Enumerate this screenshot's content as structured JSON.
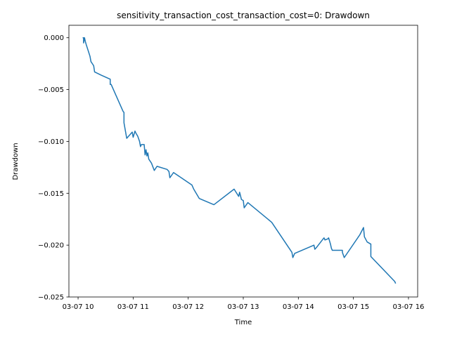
{
  "chart_data": {
    "type": "line",
    "title": "sensitivity_transaction_cost_transaction_cost=0: Drawdown",
    "xlabel": "Time",
    "ylabel": "Drawdown",
    "x_axis_kind": "time",
    "xlim": [
      "03-07 09:50",
      "03-07 16:10"
    ],
    "ylim": [
      -0.025,
      0.0012
    ],
    "xticks": [
      {
        "value": "03-07 10:00",
        "label": "03-07 10"
      },
      {
        "value": "03-07 11:00",
        "label": "03-07 11"
      },
      {
        "value": "03-07 12:00",
        "label": "03-07 12"
      },
      {
        "value": "03-07 13:00",
        "label": "03-07 13"
      },
      {
        "value": "03-07 14:00",
        "label": "03-07 14"
      },
      {
        "value": "03-07 15:00",
        "label": "03-07 15"
      },
      {
        "value": "03-07 16:00",
        "label": "03-07 16"
      }
    ],
    "yticks": [
      {
        "value": 0.0,
        "label": "0.000"
      },
      {
        "value": -0.005,
        "label": "−0.005"
      },
      {
        "value": -0.01,
        "label": "−0.010"
      },
      {
        "value": -0.015,
        "label": "−0.015"
      },
      {
        "value": -0.02,
        "label": "−0.020"
      },
      {
        "value": -0.025,
        "label": "−0.025"
      }
    ],
    "grid": false,
    "legend": "none",
    "series": [
      {
        "color": "#1f77b4",
        "points": [
          [
            "03-07 10:05",
            0.0
          ],
          [
            "03-07 10:06",
            0.0
          ],
          [
            "03-07 10:06",
            -0.0005
          ],
          [
            "03-07 10:07",
            0.0
          ],
          [
            "03-07 10:08",
            -0.0004
          ],
          [
            "03-07 10:09",
            -0.0007
          ],
          [
            "03-07 10:13",
            -0.0018
          ],
          [
            "03-07 10:14",
            -0.0023
          ],
          [
            "03-07 10:17",
            -0.0027
          ],
          [
            "03-07 10:18",
            -0.0033
          ],
          [
            "03-07 10:25",
            -0.0036
          ],
          [
            "03-07 10:35",
            -0.004
          ],
          [
            "03-07 10:35",
            -0.0045
          ],
          [
            "03-07 10:36",
            -0.0045
          ],
          [
            "03-07 10:49",
            -0.0071
          ],
          [
            "03-07 10:50",
            -0.0072
          ],
          [
            "03-07 10:50",
            -0.0082
          ],
          [
            "03-07 10:53",
            -0.0097
          ],
          [
            "03-07 10:59",
            -0.0091
          ],
          [
            "03-07 11:00",
            -0.0096
          ],
          [
            "03-07 11:02",
            -0.009
          ],
          [
            "03-07 11:03",
            -0.0092
          ],
          [
            "03-07 11:05",
            -0.0095
          ],
          [
            "03-07 11:07",
            -0.01
          ],
          [
            "03-07 11:08",
            -0.0105
          ],
          [
            "03-07 11:09",
            -0.0103
          ],
          [
            "03-07 11:12",
            -0.0103
          ],
          [
            "03-07 11:13",
            -0.0113
          ],
          [
            "03-07 11:14",
            -0.0108
          ],
          [
            "03-07 11:15",
            -0.0114
          ],
          [
            "03-07 11:16",
            -0.0111
          ],
          [
            "03-07 11:17",
            -0.0117
          ],
          [
            "03-07 11:20",
            -0.0121
          ],
          [
            "03-07 11:23",
            -0.0128
          ],
          [
            "03-07 11:26",
            -0.0124
          ],
          [
            "03-07 11:37",
            -0.0127
          ],
          [
            "03-07 11:39",
            -0.0129
          ],
          [
            "03-07 11:40",
            -0.0135
          ],
          [
            "03-07 11:44",
            -0.013
          ],
          [
            "03-07 12:04",
            -0.0142
          ],
          [
            "03-07 12:06",
            -0.0146
          ],
          [
            "03-07 12:12",
            -0.0155
          ],
          [
            "03-07 12:28",
            -0.0161
          ],
          [
            "03-07 12:50",
            -0.0146
          ],
          [
            "03-07 12:55",
            -0.0153
          ],
          [
            "03-07 12:56",
            -0.0149
          ],
          [
            "03-07 12:58",
            -0.0156
          ],
          [
            "03-07 13:00",
            -0.0157
          ],
          [
            "03-07 13:01",
            -0.0164
          ],
          [
            "03-07 13:05",
            -0.0159
          ],
          [
            "03-07 13:31",
            -0.0178
          ],
          [
            "03-07 13:53",
            -0.0207
          ],
          [
            "03-07 13:54",
            -0.0212
          ],
          [
            "03-07 13:56",
            -0.0208
          ],
          [
            "03-07 14:17",
            -0.02
          ],
          [
            "03-07 14:18",
            -0.0204
          ],
          [
            "03-07 14:20",
            -0.0202
          ],
          [
            "03-07 14:27",
            -0.0194
          ],
          [
            "03-07 14:28",
            -0.0193
          ],
          [
            "03-07 14:29",
            -0.0195
          ],
          [
            "03-07 14:32",
            -0.0194
          ],
          [
            "03-07 14:33",
            -0.0193
          ],
          [
            "03-07 14:35",
            -0.0199
          ],
          [
            "03-07 14:36",
            -0.0203
          ],
          [
            "03-07 14:37",
            -0.0205
          ],
          [
            "03-07 14:48",
            -0.0205
          ],
          [
            "03-07 14:48",
            -0.0207
          ],
          [
            "03-07 14:50",
            -0.0212
          ],
          [
            "03-07 15:07",
            -0.019
          ],
          [
            "03-07 15:11",
            -0.0183
          ],
          [
            "03-07 15:12",
            -0.0192
          ],
          [
            "03-07 15:15",
            -0.0197
          ],
          [
            "03-07 15:19",
            -0.0199
          ],
          [
            "03-07 15:19",
            -0.0211
          ],
          [
            "03-07 15:45",
            -0.0235
          ],
          [
            "03-07 15:46",
            -0.0237
          ]
        ]
      }
    ]
  }
}
